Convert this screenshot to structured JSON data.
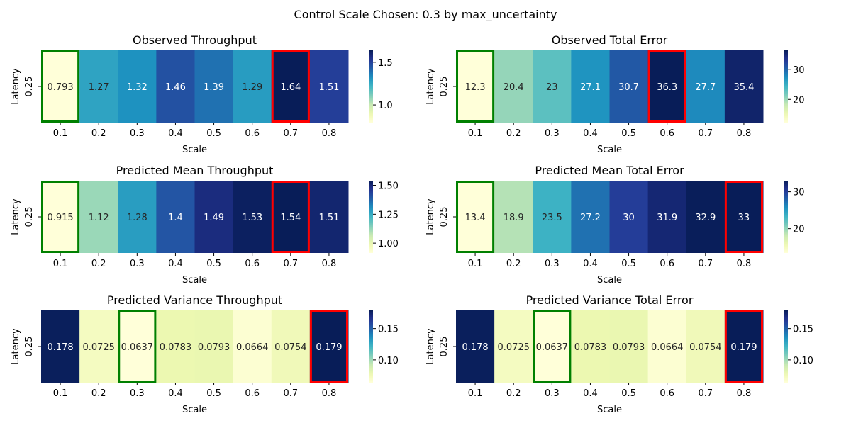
{
  "suptitle": "Control Scale Chosen: 0.3 by max_uncertainty",
  "highlight_colors": {
    "min": "#008000",
    "max": "#ff0000"
  },
  "colormap": "YlGnBu",
  "chart_data": [
    {
      "type": "heatmap",
      "title": "Observed Throughput",
      "xlabel": "Scale",
      "ylabel": "Latency",
      "x": [
        "0.1",
        "0.2",
        "0.3",
        "0.4",
        "0.5",
        "0.6",
        "0.7",
        "0.8"
      ],
      "y": [
        "0.25"
      ],
      "labels": [
        "0.793",
        "1.27",
        "1.32",
        "1.46",
        "1.39",
        "1.29",
        "1.64",
        "1.51"
      ],
      "values": [
        0.793,
        1.27,
        1.32,
        1.46,
        1.39,
        1.29,
        1.64,
        1.51
      ],
      "vmin": 0.793,
      "vmax": 1.64,
      "colorbar_ticks": [
        "1.0",
        "1.5"
      ],
      "colorbar_tick_values": [
        1.0,
        1.5
      ],
      "highlight_min_index": 0,
      "highlight_max_index": 6
    },
    {
      "type": "heatmap",
      "title": "Observed Total Error",
      "xlabel": "Scale",
      "ylabel": "Latency",
      "x": [
        "0.1",
        "0.2",
        "0.3",
        "0.4",
        "0.5",
        "0.6",
        "0.7",
        "0.8"
      ],
      "y": [
        "0.25"
      ],
      "labels": [
        "12.3",
        "20.4",
        "23",
        "27.1",
        "30.7",
        "36.3",
        "27.7",
        "35.4"
      ],
      "values": [
        12.3,
        20.4,
        23,
        27.1,
        30.7,
        36.3,
        27.7,
        35.4
      ],
      "vmin": 12.3,
      "vmax": 36.3,
      "colorbar_ticks": [
        "20",
        "30"
      ],
      "colorbar_tick_values": [
        20,
        30
      ],
      "highlight_min_index": 0,
      "highlight_max_index": 5
    },
    {
      "type": "heatmap",
      "title": "Predicted Mean Throughput",
      "xlabel": "Scale",
      "ylabel": "Latency",
      "x": [
        "0.1",
        "0.2",
        "0.3",
        "0.4",
        "0.5",
        "0.6",
        "0.7",
        "0.8"
      ],
      "y": [
        "0.25"
      ],
      "labels": [
        "0.915",
        "1.12",
        "1.28",
        "1.4",
        "1.49",
        "1.53",
        "1.54",
        "1.51"
      ],
      "values": [
        0.915,
        1.12,
        1.28,
        1.4,
        1.49,
        1.53,
        1.54,
        1.51
      ],
      "vmin": 0.915,
      "vmax": 1.54,
      "colorbar_ticks": [
        "1.00",
        "1.25",
        "1.50"
      ],
      "colorbar_tick_values": [
        1.0,
        1.25,
        1.5
      ],
      "highlight_min_index": 0,
      "highlight_max_index": 6
    },
    {
      "type": "heatmap",
      "title": "Predicted Mean Total Error",
      "xlabel": "Scale",
      "ylabel": "Latency",
      "x": [
        "0.1",
        "0.2",
        "0.3",
        "0.4",
        "0.5",
        "0.6",
        "0.7",
        "0.8"
      ],
      "y": [
        "0.25"
      ],
      "labels": [
        "13.4",
        "18.9",
        "23.5",
        "27.2",
        "30",
        "31.9",
        "32.9",
        "33"
      ],
      "values": [
        13.4,
        18.9,
        23.5,
        27.2,
        30,
        31.9,
        32.9,
        33
      ],
      "vmin": 13.4,
      "vmax": 33,
      "colorbar_ticks": [
        "20",
        "30"
      ],
      "colorbar_tick_values": [
        20,
        30
      ],
      "highlight_min_index": 0,
      "highlight_max_index": 7
    },
    {
      "type": "heatmap",
      "title": "Predicted Variance Throughput",
      "xlabel": "Scale",
      "ylabel": "Latency",
      "x": [
        "0.1",
        "0.2",
        "0.3",
        "0.4",
        "0.5",
        "0.6",
        "0.7",
        "0.8"
      ],
      "y": [
        "0.25"
      ],
      "labels": [
        "0.178",
        "0.0725",
        "0.0637",
        "0.0783",
        "0.0793",
        "0.0664",
        "0.0754",
        "0.179"
      ],
      "values": [
        0.178,
        0.0725,
        0.0637,
        0.0783,
        0.0793,
        0.0664,
        0.0754,
        0.179
      ],
      "vmin": 0.0637,
      "vmax": 0.179,
      "colorbar_ticks": [
        "0.10",
        "0.15"
      ],
      "colorbar_tick_values": [
        0.1,
        0.15
      ],
      "highlight_min_index": 2,
      "highlight_max_index": 7
    },
    {
      "type": "heatmap",
      "title": "Predicted Variance Total Error",
      "xlabel": "Scale",
      "ylabel": "Latency",
      "x": [
        "0.1",
        "0.2",
        "0.3",
        "0.4",
        "0.5",
        "0.6",
        "0.7",
        "0.8"
      ],
      "y": [
        "0.25"
      ],
      "labels": [
        "0.178",
        "0.0725",
        "0.0637",
        "0.0783",
        "0.0793",
        "0.0664",
        "0.0754",
        "0.179"
      ],
      "values": [
        0.178,
        0.0725,
        0.0637,
        0.0783,
        0.0793,
        0.0664,
        0.0754,
        0.179
      ],
      "vmin": 0.0637,
      "vmax": 0.179,
      "colorbar_ticks": [
        "0.10",
        "0.15"
      ],
      "colorbar_tick_values": [
        0.1,
        0.15
      ],
      "highlight_min_index": 2,
      "highlight_max_index": 7
    }
  ]
}
